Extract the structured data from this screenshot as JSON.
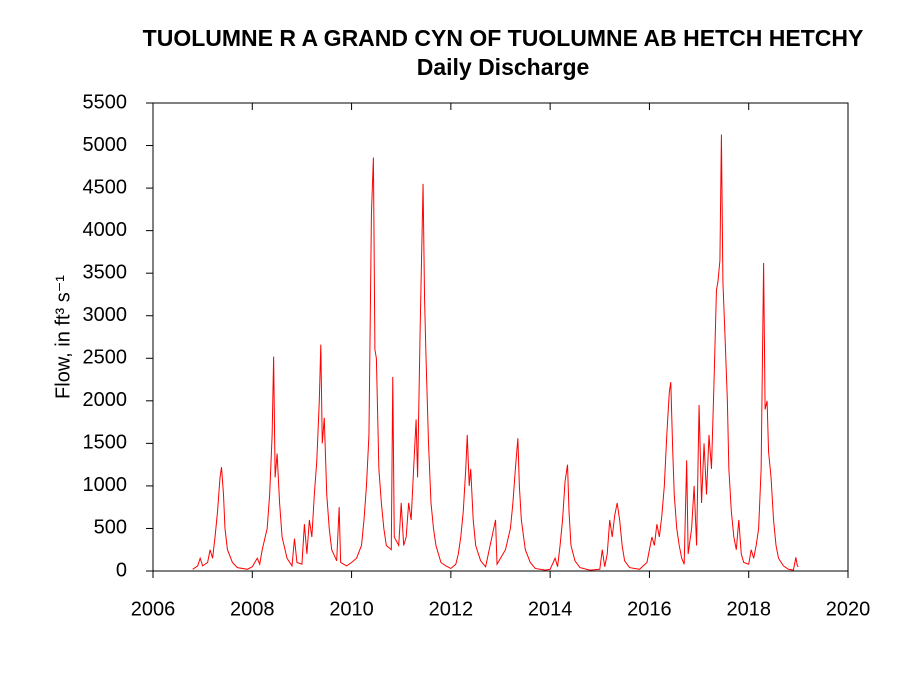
{
  "chart_data": {
    "type": "line",
    "title": "TUOLUMNE R A GRAND CYN OF TUOLUMNE AB HETCH HETCHY",
    "subtitle": "Daily Discharge",
    "ylabel": "Flow, in ft³ s⁻¹",
    "xlim": [
      2006,
      2020
    ],
    "xticks": [
      2006,
      2008,
      2010,
      2012,
      2014,
      2016,
      2018,
      2020
    ],
    "ylim": [
      0,
      5500
    ],
    "yticks": [
      0,
      500,
      1000,
      1500,
      2000,
      2500,
      3000,
      3500,
      4000,
      4500,
      5000,
      5500
    ],
    "grid": false,
    "x": [
      2006.8,
      2006.9,
      2006.95,
      2007.0,
      2007.1,
      2007.15,
      2007.2,
      2007.25,
      2007.3,
      2007.35,
      2007.38,
      2007.42,
      2007.45,
      2007.5,
      2007.6,
      2007.7,
      2007.9,
      2008.0,
      2008.1,
      2008.15,
      2008.2,
      2008.3,
      2008.35,
      2008.4,
      2008.43,
      2008.46,
      2008.5,
      2008.55,
      2008.6,
      2008.7,
      2008.8,
      2008.85,
      2008.9,
      2009.0,
      2009.05,
      2009.1,
      2009.15,
      2009.2,
      2009.25,
      2009.3,
      2009.35,
      2009.38,
      2009.41,
      2009.45,
      2009.5,
      2009.55,
      2009.6,
      2009.7,
      2009.75,
      2009.78,
      2009.9,
      2010.0,
      2010.1,
      2010.2,
      2010.25,
      2010.3,
      2010.35,
      2010.4,
      2010.44,
      2010.47,
      2010.5,
      2010.55,
      2010.6,
      2010.65,
      2010.7,
      2010.8,
      2010.83,
      2010.86,
      2010.95,
      2011.0,
      2011.05,
      2011.1,
      2011.15,
      2011.2,
      2011.25,
      2011.3,
      2011.33,
      2011.38,
      2011.44,
      2011.47,
      2011.5,
      2011.55,
      2011.6,
      2011.65,
      2011.7,
      2011.8,
      2011.9,
      2012.0,
      2012.1,
      2012.15,
      2012.2,
      2012.25,
      2012.3,
      2012.33,
      2012.37,
      2012.4,
      2012.45,
      2012.5,
      2012.6,
      2012.7,
      2012.9,
      2012.93,
      2013.0,
      2013.1,
      2013.2,
      2013.25,
      2013.3,
      2013.35,
      2013.38,
      2013.42,
      2013.5,
      2013.6,
      2013.7,
      2013.9,
      2014.0,
      2014.1,
      2014.15,
      2014.2,
      2014.25,
      2014.3,
      2014.35,
      2014.38,
      2014.42,
      2014.5,
      2014.6,
      2014.8,
      2015.0,
      2015.05,
      2015.1,
      2015.15,
      2015.2,
      2015.25,
      2015.3,
      2015.35,
      2015.4,
      2015.45,
      2015.5,
      2015.6,
      2015.8,
      2015.95,
      2016.0,
      2016.05,
      2016.1,
      2016.15,
      2016.2,
      2016.25,
      2016.3,
      2016.35,
      2016.4,
      2016.43,
      2016.47,
      2016.5,
      2016.55,
      2016.6,
      2016.65,
      2016.7,
      2016.75,
      2016.78,
      2016.85,
      2016.9,
      2016.95,
      2017.0,
      2017.05,
      2017.1,
      2017.15,
      2017.2,
      2017.25,
      2017.3,
      2017.35,
      2017.38,
      2017.42,
      2017.45,
      2017.48,
      2017.52,
      2017.57,
      2017.6,
      2017.65,
      2017.7,
      2017.75,
      2017.8,
      2017.85,
      2017.9,
      2018.0,
      2018.05,
      2018.1,
      2018.15,
      2018.2,
      2018.25,
      2018.3,
      2018.33,
      2018.37,
      2018.4,
      2018.45,
      2018.5,
      2018.55,
      2018.6,
      2018.7,
      2018.8,
      2018.9,
      2018.95,
      2018.98,
      2019.0
    ],
    "series": [
      {
        "color": "#ff0000",
        "values": [
          20,
          60,
          150,
          60,
          100,
          250,
          150,
          400,
          700,
          1100,
          1220,
          900,
          500,
          250,
          100,
          40,
          20,
          50,
          150,
          80,
          250,
          500,
          900,
          1600,
          2520,
          1100,
          1380,
          800,
          400,
          150,
          60,
          380,
          100,
          80,
          550,
          200,
          600,
          400,
          900,
          1300,
          2000,
          2660,
          1500,
          1800,
          900,
          500,
          250,
          120,
          750,
          100,
          60,
          100,
          150,
          300,
          600,
          1000,
          1600,
          4200,
          4860,
          2600,
          2500,
          1200,
          800,
          500,
          300,
          250,
          2280,
          400,
          300,
          800,
          300,
          400,
          800,
          600,
          1200,
          1780,
          1100,
          2800,
          4550,
          3200,
          2500,
          1500,
          800,
          500,
          300,
          100,
          60,
          30,
          80,
          200,
          400,
          700,
          1200,
          1600,
          1000,
          1200,
          600,
          300,
          120,
          50,
          600,
          80,
          150,
          250,
          500,
          800,
          1200,
          1560,
          1000,
          600,
          250,
          100,
          30,
          10,
          20,
          150,
          50,
          300,
          600,
          1050,
          1250,
          700,
          300,
          120,
          40,
          10,
          20,
          250,
          50,
          200,
          600,
          400,
          650,
          800,
          600,
          300,
          120,
          40,
          20,
          100,
          250,
          400,
          300,
          550,
          400,
          650,
          1000,
          1600,
          2100,
          2220,
          1400,
          900,
          500,
          300,
          150,
          80,
          1300,
          200,
          500,
          1000,
          300,
          1950,
          800,
          1500,
          900,
          1600,
          1200,
          2200,
          3300,
          3400,
          3650,
          5130,
          3400,
          2800,
          2000,
          1200,
          700,
          400,
          250,
          600,
          200,
          100,
          80,
          250,
          150,
          300,
          500,
          1200,
          3620,
          1900,
          2000,
          1400,
          1100,
          600,
          300,
          150,
          60,
          20,
          10,
          160,
          60,
          50
        ]
      }
    ]
  }
}
